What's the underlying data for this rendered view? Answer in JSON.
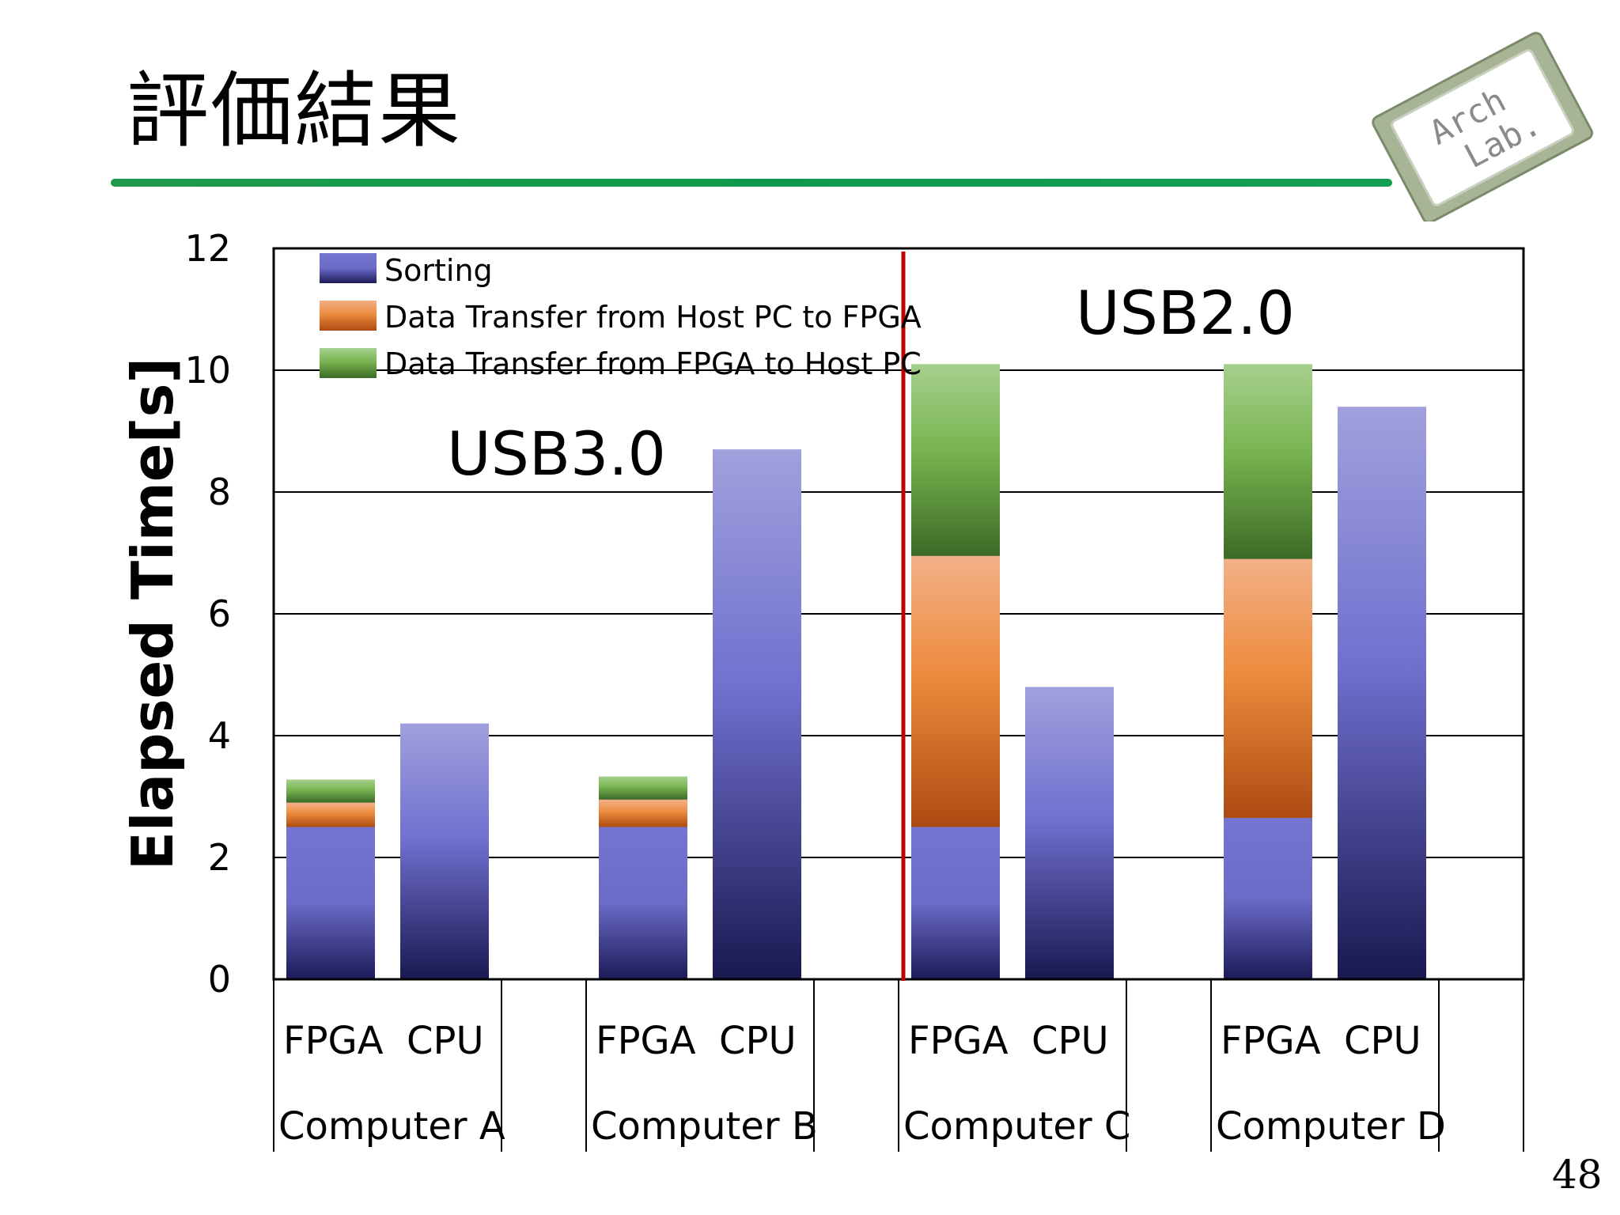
{
  "slide": {
    "title": "評価結果",
    "page_number": "48",
    "logo": {
      "line1": "Arch",
      "line2": "Lab."
    }
  },
  "colors": {
    "sorting": "#6e6ed0",
    "host_to_fpga": "#e88434",
    "fpga_to_host": "#6aaa44",
    "divider": "#c00000",
    "title_rule": "#0e9a4c"
  },
  "chart_data": {
    "type": "bar",
    "stacked": true,
    "ylabel": "Elapsed Time[s]",
    "ylim": [
      0,
      12
    ],
    "yticks": [
      "0",
      "2",
      "4",
      "6",
      "8",
      "10",
      "12"
    ],
    "grid": true,
    "legend_position": "top-left",
    "groups": [
      "Computer A",
      "Computer B",
      "Computer C",
      "Computer D"
    ],
    "categories": [
      "FPGA",
      "CPU",
      "FPGA",
      "CPU",
      "FPGA",
      "CPU",
      "FPGA",
      "CPU"
    ],
    "series": [
      {
        "name": "Sorting",
        "color_key": "sorting",
        "values": [
          2.5,
          4.2,
          2.5,
          8.7,
          2.5,
          4.8,
          2.65,
          9.4
        ]
      },
      {
        "name": "Data Transfer from Host PC to FPGA",
        "color_key": "host_to_fpga",
        "values": [
          0.4,
          0,
          0.45,
          0,
          4.45,
          0,
          4.25,
          0
        ]
      },
      {
        "name": "Data Transfer from FPGA to Host PC",
        "color_key": "fpga_to_host",
        "values": [
          0.38,
          0,
          0.38,
          0,
          3.15,
          0,
          3.2,
          0
        ]
      }
    ],
    "annotations": [
      "USB3.0",
      "USB2.0"
    ]
  }
}
